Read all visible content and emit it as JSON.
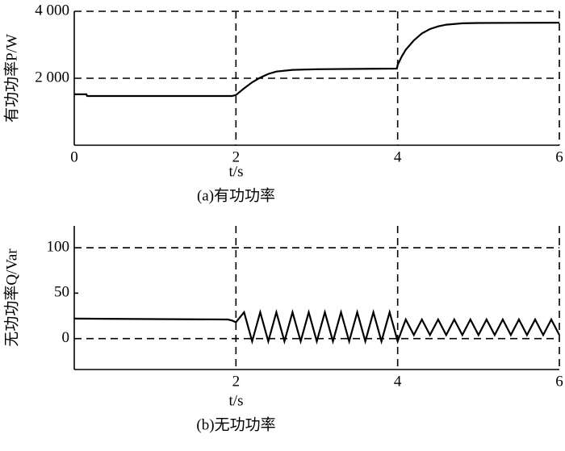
{
  "chart_data": [
    {
      "type": "line",
      "caption": "(a)有功功率",
      "x_label": "t/s",
      "y_label": "有功功率P/W",
      "xlim": [
        0,
        6
      ],
      "xticks": [
        0,
        2,
        4,
        6
      ],
      "ylim": [
        0,
        4000
      ],
      "yticks": [
        {
          "value": 2000,
          "label": "2 000"
        },
        {
          "value": 4000,
          "label": "4 000"
        }
      ],
      "grid": true,
      "series": [
        {
          "color": "#000000",
          "x": [
            0,
            0.15,
            0.16,
            1.95,
            2.0,
            2.1,
            2.2,
            2.3,
            2.4,
            2.5,
            2.7,
            3.0,
            3.5,
            3.99,
            4.0,
            4.05,
            4.1,
            4.2,
            4.3,
            4.4,
            4.5,
            4.6,
            4.8,
            5.0,
            6.0
          ],
          "values": [
            1520,
            1520,
            1470,
            1470,
            1500,
            1700,
            1880,
            2020,
            2130,
            2200,
            2250,
            2270,
            2280,
            2290,
            2400,
            2650,
            2850,
            3130,
            3340,
            3470,
            3550,
            3600,
            3640,
            3650,
            3660
          ]
        }
      ]
    },
    {
      "type": "line",
      "caption": "(b)无功功率",
      "x_label": "t/s",
      "y_label": "无功功率Q/Var",
      "xlim": [
        0,
        6
      ],
      "xticks": [
        2,
        4,
        6
      ],
      "ylim": [
        -34,
        124
      ],
      "yticks": [
        0,
        50,
        100
      ],
      "grid_y": [
        0,
        100
      ],
      "grid": true,
      "series": [
        {
          "color": "#000000",
          "x": [
            0,
            1.9,
            1.95,
            2.0,
            2.1,
            2.2,
            2.3,
            2.4,
            2.5,
            2.6,
            2.7,
            2.8,
            2.9,
            3.0,
            3.1,
            3.2,
            3.3,
            3.4,
            3.5,
            3.6,
            3.7,
            3.8,
            3.9,
            4.0,
            4.1,
            4.2,
            4.3,
            4.4,
            4.5,
            4.6,
            4.7,
            4.8,
            4.9,
            5.0,
            5.1,
            5.2,
            5.3,
            5.4,
            5.5,
            5.6,
            5.7,
            5.8,
            5.9,
            6.0
          ],
          "values": [
            22,
            21,
            20,
            18,
            29,
            -3,
            29,
            -3,
            29,
            -3,
            29,
            -3,
            29,
            -3,
            29,
            -3,
            29,
            -3,
            29,
            -3,
            29,
            -3,
            29,
            -3,
            21,
            4,
            21,
            4,
            21,
            4,
            21,
            4,
            21,
            4,
            21,
            4,
            21,
            4,
            21,
            4,
            21,
            4,
            21,
            4
          ]
        }
      ]
    }
  ]
}
